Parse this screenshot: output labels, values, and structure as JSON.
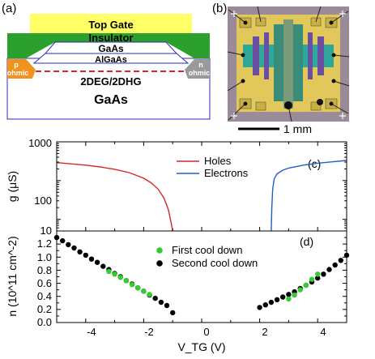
{
  "panel_a": {
    "letter": "(a)",
    "layers": {
      "top_gate": "Top Gate",
      "insulator": "Insulator",
      "gaas_cap": "GaAs",
      "algaas": "AlGaAs",
      "twodeg": "2DEG/2DHG",
      "gaas_substrate": "GaAs",
      "p_ohmic_1": "p",
      "p_ohmic_2": "ohmic",
      "n_ohmic_1": "n",
      "n_ohmic_2": "ohmic"
    },
    "colors": {
      "top_gate": "#ffff66",
      "insulator": "#2ca02c",
      "p_ohmic": "#f0921e",
      "n_ohmic": "#9a9a9a",
      "twodeg_line": "#d62728",
      "outline": "#2b2bb8"
    }
  },
  "panel_b": {
    "letter": "(b)",
    "scale_label": "1 mm"
  },
  "chart_data": [
    {
      "type": "line",
      "panel": "(c)",
      "xlim": [
        -5,
        5
      ],
      "ylim": [
        5,
        1000
      ],
      "yscale": "log",
      "ylabel": "g (μS)",
      "ytick_labels": [
        "10",
        "100",
        "1000"
      ],
      "legend_position": "top-center",
      "series": [
        {
          "name": "Holes",
          "color": "#d62728",
          "x": [
            -5.0,
            -4.5,
            -4.0,
            -3.5,
            -3.0,
            -2.5,
            -2.0,
            -1.75,
            -1.5,
            -1.3,
            -1.15,
            -1.05,
            -1.0
          ],
          "y": [
            290,
            270,
            250,
            225,
            195,
            160,
            115,
            88,
            60,
            35,
            18,
            8,
            5
          ]
        },
        {
          "name": "Electrons",
          "color": "#1f5fc8",
          "x": [
            2.4,
            2.42,
            2.45,
            2.5,
            2.6,
            2.8,
            3.0,
            3.5,
            4.0,
            4.5,
            5.0
          ],
          "y": [
            5,
            20,
            60,
            110,
            150,
            185,
            210,
            250,
            280,
            305,
            330
          ]
        }
      ]
    },
    {
      "type": "scatter",
      "panel": "(d)",
      "xlim": [
        -5,
        5
      ],
      "ylim": [
        0,
        1.4
      ],
      "xlabel": "V_TG (V)",
      "ylabel": "n (10^11 cm^-2)",
      "xtick_labels": [
        "-4",
        "-2",
        "0",
        "2",
        "4"
      ],
      "ytick_labels": [
        "0.0",
        "0.2",
        "0.4",
        "0.6",
        "0.8",
        "1.0",
        "1.2"
      ],
      "legend_position": "top-center",
      "series": [
        {
          "name": "First cool down",
          "color": "#33cc33",
          "x": [
            -3.2,
            -3.0,
            -2.8,
            -2.6,
            -2.4,
            -2.2,
            -2.0,
            -1.8,
            3.0,
            3.2,
            3.4,
            3.6,
            3.8,
            4.0
          ],
          "y": [
            0.78,
            0.74,
            0.69,
            0.64,
            0.58,
            0.53,
            0.48,
            0.43,
            0.36,
            0.42,
            0.5,
            0.57,
            0.66,
            0.74
          ]
        },
        {
          "name": "Second cool down",
          "color": "#000000",
          "x": [
            -5.0,
            -4.8,
            -4.6,
            -4.4,
            -4.2,
            -4.0,
            -3.8,
            -3.6,
            -3.4,
            -3.2,
            -3.0,
            -2.8,
            -2.6,
            -2.4,
            -2.2,
            -2.0,
            -1.8,
            -1.6,
            -1.4,
            -1.2,
            -1.0,
            2.0,
            2.2,
            2.4,
            2.6,
            2.8,
            3.0,
            3.2,
            3.4,
            3.6,
            3.8,
            4.0,
            4.2,
            4.4,
            4.6,
            4.8,
            5.0
          ],
          "y": [
            1.3,
            1.25,
            1.19,
            1.14,
            1.08,
            1.03,
            0.97,
            0.92,
            0.86,
            0.81,
            0.75,
            0.7,
            0.64,
            0.59,
            0.53,
            0.48,
            0.42,
            0.37,
            0.31,
            0.26,
            0.15,
            0.23,
            0.27,
            0.31,
            0.35,
            0.39,
            0.43,
            0.47,
            0.52,
            0.57,
            0.62,
            0.68,
            0.74,
            0.81,
            0.88,
            0.95,
            1.03
          ]
        }
      ]
    }
  ]
}
